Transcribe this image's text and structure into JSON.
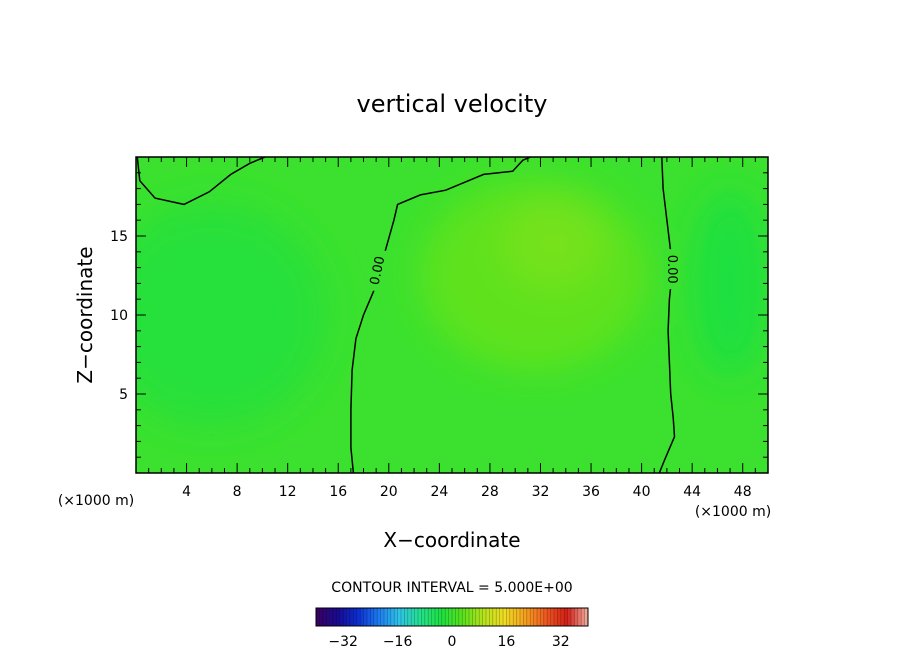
{
  "chart_data": {
    "type": "contour",
    "title": "vertical velocity",
    "xlabel": "X−coordinate",
    "ylabel": "Z−coordinate",
    "x_unit_label": "(×1000 m)",
    "x_ticks": [
      4,
      8,
      12,
      16,
      20,
      24,
      28,
      32,
      36,
      40,
      44,
      48
    ],
    "y_ticks": [
      5,
      10,
      15
    ],
    "xlim": [
      0,
      50
    ],
    "ylim": [
      0,
      20
    ],
    "contour_lines": [
      {
        "label": "0.00",
        "points": [
          [
            0.1,
            20
          ],
          [
            0.3,
            18.5
          ],
          [
            1.5,
            17.4
          ],
          [
            3.8,
            17.0
          ],
          [
            5.8,
            17.8
          ],
          [
            7.5,
            18.9
          ],
          [
            9.0,
            19.6
          ],
          [
            10.2,
            20
          ]
        ]
      },
      {
        "label": "0.00",
        "points": [
          [
            17.2,
            0
          ],
          [
            17.0,
            1.6
          ],
          [
            17.0,
            4.0
          ],
          [
            17.1,
            6.5
          ],
          [
            17.4,
            8.5
          ],
          [
            18.0,
            10.0
          ],
          [
            18.8,
            11.5
          ],
          [
            19.2,
            13.0
          ],
          [
            19.7,
            14.0
          ],
          [
            20.4,
            16.0
          ],
          [
            20.7,
            17.0
          ],
          [
            22.5,
            17.6
          ],
          [
            24.5,
            17.9
          ],
          [
            26.0,
            18.4
          ],
          [
            27.5,
            18.9
          ],
          [
            29.8,
            19.1
          ],
          [
            30.6,
            19.8
          ],
          [
            31.2,
            20
          ]
        ]
      },
      {
        "label": "0.00",
        "points": [
          [
            41.4,
            0
          ],
          [
            41.8,
            0.8
          ],
          [
            42.6,
            2.3
          ],
          [
            42.5,
            3.5
          ],
          [
            42.3,
            5.0
          ],
          [
            42.2,
            7.0
          ],
          [
            42.1,
            9.0
          ],
          [
            42.2,
            11.0
          ],
          [
            42.4,
            12.5
          ],
          [
            42.3,
            14.0
          ],
          [
            42.0,
            16.0
          ],
          [
            41.7,
            18.0
          ],
          [
            41.6,
            20
          ]
        ]
      }
    ],
    "color_blobs": [
      {
        "cx": 31.5,
        "cy": 12.5,
        "rx": 9,
        "ry": 6,
        "value": 3.5
      },
      {
        "cx": 33.0,
        "cy": 14.5,
        "rx": 4,
        "ry": 2.8,
        "value": 5
      },
      {
        "cx": 6.0,
        "cy": 10.0,
        "rx": 9,
        "ry": 7,
        "value": -2
      },
      {
        "cx": 47.0,
        "cy": 12.0,
        "rx": 3,
        "ry": 6,
        "value": -3
      }
    ],
    "background_value": 0,
    "contour_interval_text": "CONTOUR INTERVAL = 5.000E+00",
    "colorbar": {
      "range": [
        -40,
        40
      ],
      "tick_values": [
        -32,
        -16,
        0,
        16,
        32
      ],
      "tick_labels": [
        "−32",
        "−16",
        "0",
        "16",
        "32"
      ],
      "colors": [
        "#3b0060",
        "#1a0a90",
        "#0b2fd0",
        "#1c7cf0",
        "#2ec5e8",
        "#25e08c",
        "#1ee040",
        "#58e21c",
        "#b6e21e",
        "#eedc22",
        "#f4a020",
        "#ec5820",
        "#d21e16",
        "#f0b0a0"
      ]
    }
  }
}
